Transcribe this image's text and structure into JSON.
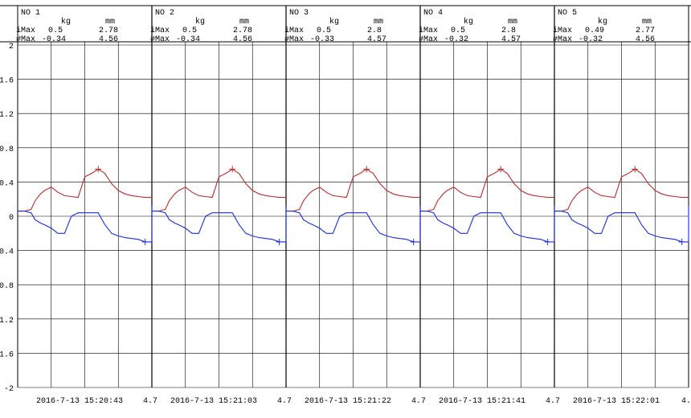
{
  "units": {
    "force": "kg",
    "disp": "mm"
  },
  "row_labels": {
    "max": "iMax",
    "min": "#Max"
  },
  "y_axis": {
    "ticks": [
      "2",
      "1.6",
      "1.2",
      "0.8",
      "0.4",
      "0",
      "0.4",
      "0.8",
      "1.2",
      "1.6",
      "-2"
    ]
  },
  "panels": [
    {
      "no": "NO 1",
      "max_kg": "0.5",
      "max_mm": "2.78",
      "min_kg": "-0.34",
      "min_mm": "4.56",
      "footer_value": "",
      "timestamp": "2016-7-13 15:20:43"
    },
    {
      "no": "NO 2",
      "max_kg": "0.5",
      "max_mm": "2.78",
      "min_kg": "-0.34",
      "min_mm": "4.56",
      "footer_value": "4.7",
      "timestamp": "2016-7-13 15:21:03"
    },
    {
      "no": "NO 3",
      "max_kg": "0.5",
      "max_mm": "2.8",
      "min_kg": "-0.33",
      "min_mm": "4.57",
      "footer_value": "4.7",
      "timestamp": "2016-7-13 15:21:22"
    },
    {
      "no": "NO 4",
      "max_kg": "0.5",
      "max_mm": "2.8",
      "min_kg": "-0.32",
      "min_mm": "4.57",
      "footer_value": "4.7",
      "timestamp": "2016-7-13 15:21:41"
    },
    {
      "no": "NO 5",
      "max_kg": "0.49",
      "max_mm": "2.77",
      "min_kg": "-0.32",
      "min_mm": "4.56",
      "footer_value": "4.7",
      "timestamp": "2016-7-13 15:22:01"
    }
  ],
  "trailing_footer_value": "4.",
  "chart_data": {
    "type": "line",
    "ylim": [
      -2,
      2
    ],
    "grid": true,
    "colors": {
      "upper": "#b03030",
      "lower": "#1a2fd6",
      "grid": "#000000"
    },
    "x": [
      0,
      0.05,
      0.1,
      0.13,
      0.17,
      0.2,
      0.25,
      0.3,
      0.35,
      0.4,
      0.45,
      0.5,
      0.55,
      0.6,
      0.65,
      0.7,
      0.75,
      0.8,
      0.85,
      0.9,
      0.95,
      1.0
    ],
    "series": [
      {
        "values": [
          0.06,
          0.06,
          0.08,
          0.18,
          0.26,
          0.3,
          0.34,
          0.28,
          0.24,
          0.23,
          0.22,
          0.46,
          0.5,
          0.55,
          0.5,
          0.38,
          0.3,
          0.26,
          0.24,
          0.23,
          0.22,
          0.22
        ]
      },
      {
        "values": [
          0.06,
          0.06,
          0.04,
          -0.04,
          -0.08,
          -0.1,
          -0.14,
          -0.2,
          -0.2,
          0.0,
          0.04,
          0.04,
          0.04,
          0.04,
          -0.1,
          -0.2,
          -0.23,
          -0.25,
          -0.26,
          -0.27,
          -0.3,
          -0.3
        ]
      }
    ]
  }
}
